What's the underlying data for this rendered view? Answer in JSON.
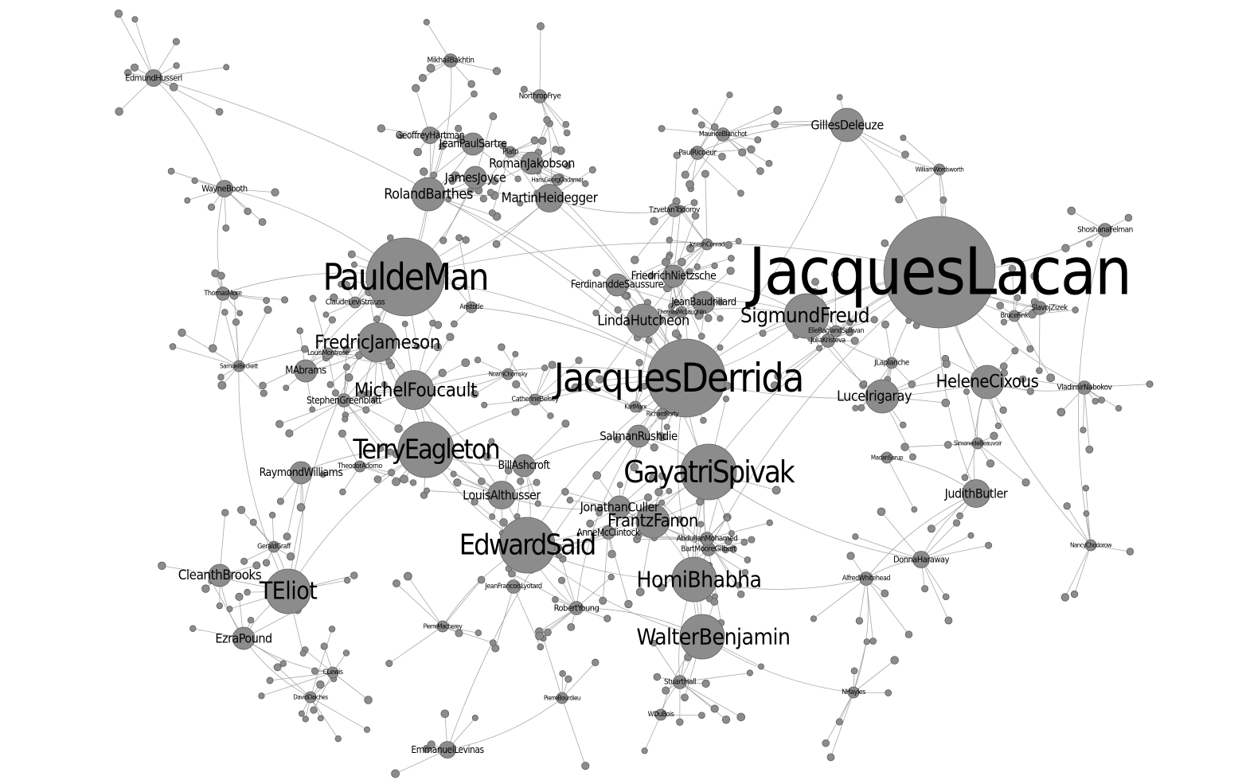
{
  "graph": {
    "style": {
      "background": "#ffffff",
      "node_fill": "#8c8c8c",
      "edge_color": "#9a9a9a",
      "label_color": "#000000"
    },
    "nodes": [
      {
        "id": "lacan",
        "label": "JacquesLacan",
        "weight": 10
      },
      {
        "id": "derrida",
        "label": "JacquesDerrida",
        "weight": 7
      },
      {
        "id": "deman",
        "label": "PauldeMan",
        "weight": 7
      },
      {
        "id": "spivak",
        "label": "GayatriSpivak",
        "weight": 5
      },
      {
        "id": "eagleton",
        "label": "TerryEagleton",
        "weight": 5
      },
      {
        "id": "said",
        "label": "EdwardSaid",
        "weight": 5
      },
      {
        "id": "bhabha",
        "label": "HomiBhabha",
        "weight": 4
      },
      {
        "id": "benjamin",
        "label": "WalterBenjamin",
        "weight": 4
      },
      {
        "id": "eliot",
        "label": "TEliot",
        "weight": 4
      },
      {
        "id": "freud",
        "label": "SigmundFreud",
        "weight": 4
      },
      {
        "id": "foucault",
        "label": "MichelFoucault",
        "weight": 3.5
      },
      {
        "id": "jameson",
        "label": "FredricJameson",
        "weight": 3.5
      },
      {
        "id": "cixous",
        "label": "HeleneCixous",
        "weight": 3
      },
      {
        "id": "irigaray",
        "label": "LuceIrigaray",
        "weight": 3
      },
      {
        "id": "barthes",
        "label": "RolandBarthes",
        "weight": 3
      },
      {
        "id": "hutcheon",
        "label": "LindaHutcheon",
        "weight": 3
      },
      {
        "id": "fanon",
        "label": "FrantzFanon",
        "weight": 3
      },
      {
        "id": "deleuze",
        "label": "GillesDeleuze",
        "weight": 3
      },
      {
        "id": "butler",
        "label": "JudithButler",
        "weight": 2.5
      },
      {
        "id": "althusser",
        "label": "LouisAlthusser",
        "weight": 2.5
      },
      {
        "id": "culler",
        "label": "JonathanCuller",
        "weight": 2
      },
      {
        "id": "rushdie",
        "label": "SalmanRushdie",
        "weight": 2
      },
      {
        "id": "nietzsche",
        "label": "FriedrichNietzsche",
        "weight": 2
      },
      {
        "id": "saussure",
        "label": "FerdinanddeSaussure",
        "weight": 2
      },
      {
        "id": "baudrillard",
        "label": "JeanBaudrillard",
        "weight": 2
      },
      {
        "id": "heidegger",
        "label": "MartinHeidegger",
        "weight": 2.5
      },
      {
        "id": "jakobson",
        "label": "RomanJakobson",
        "weight": 2
      },
      {
        "id": "joyce",
        "label": "JamesJoyce",
        "weight": 2
      },
      {
        "id": "sartre",
        "label": "JeanPaulSartre",
        "weight": 2
      },
      {
        "id": "hartman",
        "label": "GeoffreyHartman",
        "weight": 1.5
      },
      {
        "id": "brooks",
        "label": "CleanthBrooks",
        "weight": 2
      },
      {
        "id": "pound",
        "label": "EzraPound",
        "weight": 2
      },
      {
        "id": "rwilliams",
        "label": "RaymondWilliams",
        "weight": 2
      },
      {
        "id": "ashcroft",
        "label": "BillAshcroft",
        "weight": 2
      },
      {
        "id": "abrams",
        "label": "MAbrams",
        "weight": 2
      },
      {
        "id": "booth",
        "label": "WayneBooth",
        "weight": 1.5
      },
      {
        "id": "husserl",
        "label": "EdmundHusserl",
        "weight": 1.5
      },
      {
        "id": "levinas",
        "label": "EmmanuelLevinas",
        "weight": 1.5
      },
      {
        "id": "haraway",
        "label": "DonnaHaraway",
        "weight": 1.5
      },
      {
        "id": "zizek",
        "label": "SlavojZizek",
        "weight": 1.2
      },
      {
        "id": "stuarthall",
        "label": "StuartHall",
        "weight": 1.2
      },
      {
        "id": "robertyoung",
        "label": "RobertYoung",
        "weight": 1.2
      },
      {
        "id": "greenblatt",
        "label": "StephenGreenblatt",
        "weight": 1.2
      },
      {
        "id": "mcclintock",
        "label": "AnneMcClintock",
        "weight": 1.2
      },
      {
        "id": "todorov",
        "label": "TzvetanTodorov",
        "weight": 1.2
      },
      {
        "id": "ricoeur",
        "label": "PaulRicoeur",
        "weight": 1.2
      },
      {
        "id": "blanchot",
        "label": "MauriceBlanchot",
        "weight": 1.2
      },
      {
        "id": "lyotard",
        "label": "JeanFrancoisLyotard",
        "weight": 1.2
      },
      {
        "id": "frye",
        "label": "NorthropFrye",
        "weight": 1.2
      },
      {
        "id": "bakhtin",
        "label": "MikhailBakhtin",
        "weight": 1.2
      },
      {
        "id": "kristeva",
        "label": "JuliaKristeva",
        "weight": 1.2
      },
      {
        "id": "shoshana",
        "label": "ShoshanaFelman",
        "weight": 1.2
      },
      {
        "id": "nbbokov",
        "label": "VladimirNabokov",
        "weight": 1.2
      },
      {
        "id": "whitehead",
        "label": "AlfredWhitehead",
        "weight": 1.2
      },
      {
        "id": "bartmoore",
        "label": "BartMooreGilbert",
        "weight": 1.2
      },
      {
        "id": "jmohamed",
        "label": "AbdulJanMohamed",
        "weight": 1.2
      },
      {
        "id": "derridaPlato",
        "label": "Plato",
        "weight": 1
      },
      {
        "id": "aristotle",
        "label": "Aristotle",
        "weight": 1
      },
      {
        "id": "marx",
        "label": "KarlMarx",
        "weight": 1
      },
      {
        "id": "levistrauss",
        "label": "ClaudeLeviStrauss",
        "weight": 1
      },
      {
        "id": "gerald",
        "label": "GeraldGraff",
        "weight": 1
      },
      {
        "id": "beauvoir",
        "label": "SimonedeBeauvoir",
        "weight": 1
      },
      {
        "id": "marksarup",
        "label": "MadanSarup",
        "weight": 1
      },
      {
        "id": "laplanche",
        "label": "JLaplanche",
        "weight": 1
      },
      {
        "id": "chodorow",
        "label": "NancyChodorow",
        "weight": 1
      },
      {
        "id": "rcrowd",
        "label": "RichardRorty",
        "weight": 1
      },
      {
        "id": "thomasmore",
        "label": "ThomasMore",
        "weight": 1.2
      },
      {
        "id": "beckett",
        "label": "SamuelBeckett",
        "weight": 1
      },
      {
        "id": "wordsworth",
        "label": "WilliamWordsworth",
        "weight": 1
      },
      {
        "id": "bruceFink",
        "label": "BruceFink",
        "weight": 1
      },
      {
        "id": "eilreag",
        "label": "ElieRaglandSullivan",
        "weight": 1
      },
      {
        "id": "ovmorwaukee",
        "label": "ThomasMcLaughlin",
        "weight": 1
      },
      {
        "id": "chomsky",
        "label": "NoamChomsky",
        "weight": 1
      },
      {
        "id": "belsey",
        "label": "CatherineBelsey",
        "weight": 1
      },
      {
        "id": "adorno",
        "label": "TheodorAdorno",
        "weight": 1
      },
      {
        "id": "gadamer",
        "label": "HansGeorgGadamer",
        "weight": 1
      },
      {
        "id": "pbourdieu",
        "label": "PierreBourdieu",
        "weight": 1
      },
      {
        "id": "pmacherey",
        "label": "PierreMacherey",
        "weight": 1
      },
      {
        "id": "wdubois",
        "label": "WDuBois",
        "weight": 1
      },
      {
        "id": "nhayles",
        "label": "NHayles",
        "weight": 1
      },
      {
        "id": "claimo",
        "label": "CLewis",
        "weight": 1
      },
      {
        "id": "jconrad",
        "label": "JosephConrad",
        "weight": 1
      },
      {
        "id": "tdavidson",
        "label": "DavidDaiches",
        "weight": 1
      },
      {
        "id": "irby",
        "label": "LouisMontrose",
        "weight": 1
      }
    ],
    "edges": [
      [
        "lacan",
        "freud"
      ],
      [
        "lacan",
        "derrida"
      ],
      [
        "lacan",
        "cixous"
      ],
      [
        "lacan",
        "irigaray"
      ],
      [
        "lacan",
        "zizek"
      ],
      [
        "lacan",
        "deleuze"
      ],
      [
        "lacan",
        "shoshana"
      ],
      [
        "lacan",
        "butler"
      ],
      [
        "lacan",
        "bruceFink"
      ],
      [
        "lacan",
        "eilreag"
      ],
      [
        "lacan",
        "kristeva"
      ],
      [
        "lacan",
        "spivak"
      ],
      [
        "lacan",
        "deman"
      ],
      [
        "lacan",
        "bhabha"
      ],
      [
        "lacan",
        "wordsworth"
      ],
      [
        "lacan",
        "nbbokov"
      ],
      [
        "lacan",
        "chodorow"
      ],
      [
        "derrida",
        "deman"
      ],
      [
        "derrida",
        "spivak"
      ],
      [
        "derrida",
        "foucault"
      ],
      [
        "derrida",
        "barthes"
      ],
      [
        "derrida",
        "freud"
      ],
      [
        "derrida",
        "heidegger"
      ],
      [
        "derrida",
        "nietzsche"
      ],
      [
        "derrida",
        "saussure"
      ],
      [
        "derrida",
        "hutcheon"
      ],
      [
        "derrida",
        "eagleton"
      ],
      [
        "derrida",
        "culler"
      ],
      [
        "derrida",
        "said"
      ],
      [
        "derrida",
        "bhabha"
      ],
      [
        "derrida",
        "levinas"
      ],
      [
        "derrida",
        "marx"
      ],
      [
        "derrida",
        "baudrillard"
      ],
      [
        "derrida",
        "husserl"
      ],
      [
        "derrida",
        "rushdie"
      ],
      [
        "derrida",
        "cixous"
      ],
      [
        "derrida",
        "deleuze"
      ],
      [
        "derrida",
        "derridaPlato"
      ],
      [
        "derrida",
        "aristotle"
      ],
      [
        "derrida",
        "belsey"
      ],
      [
        "deman",
        "jameson"
      ],
      [
        "deman",
        "barthes"
      ],
      [
        "deman",
        "booth"
      ],
      [
        "deman",
        "heidegger"
      ],
      [
        "deman",
        "thomasmore"
      ],
      [
        "deman",
        "levistrauss"
      ],
      [
        "deman",
        "eliot"
      ],
      [
        "deman",
        "joyce"
      ],
      [
        "deman",
        "hartman"
      ],
      [
        "deman",
        "abrams"
      ],
      [
        "eagleton",
        "said"
      ],
      [
        "eagleton",
        "jameson"
      ],
      [
        "eagleton",
        "foucault"
      ],
      [
        "eagleton",
        "rwilliams"
      ],
      [
        "eagleton",
        "althusser"
      ],
      [
        "eagleton",
        "eliot"
      ],
      [
        "eagleton",
        "adorno"
      ],
      [
        "eagleton",
        "greenblatt"
      ],
      [
        "eagleton",
        "ashcroft"
      ],
      [
        "said",
        "spivak"
      ],
      [
        "said",
        "bhabha"
      ],
      [
        "said",
        "fanon"
      ],
      [
        "said",
        "foucault"
      ],
      [
        "said",
        "benjamin"
      ],
      [
        "said",
        "robertyoung"
      ],
      [
        "said",
        "lyotard"
      ],
      [
        "said",
        "pmacherey"
      ],
      [
        "said",
        "ashcroft"
      ],
      [
        "said",
        "mcclintock"
      ],
      [
        "spivak",
        "bhabha"
      ],
      [
        "spivak",
        "fanon"
      ],
      [
        "spivak",
        "benjamin"
      ],
      [
        "spivak",
        "rushdie"
      ],
      [
        "spivak",
        "jmohamed"
      ],
      [
        "spivak",
        "bartmoore"
      ],
      [
        "spivak",
        "haraway"
      ],
      [
        "bhabha",
        "benjamin"
      ],
      [
        "bhabha",
        "fanon"
      ],
      [
        "bhabha",
        "stuarthall"
      ],
      [
        "bhabha",
        "whitehead"
      ],
      [
        "benjamin",
        "wdubois"
      ],
      [
        "benjamin",
        "nhayles"
      ],
      [
        "benjamin",
        "robertyoung"
      ],
      [
        "eliot",
        "brooks"
      ],
      [
        "eliot",
        "pound"
      ],
      [
        "eliot",
        "gerald"
      ],
      [
        "eliot",
        "rwilliams"
      ],
      [
        "brooks",
        "pound"
      ],
      [
        "pound",
        "claimo"
      ],
      [
        "pound",
        "tdavidson"
      ],
      [
        "freud",
        "irigaray"
      ],
      [
        "freud",
        "laplanche"
      ],
      [
        "freud",
        "baudrillard"
      ],
      [
        "freud",
        "nietzsche"
      ],
      [
        "freud",
        "eilreag"
      ],
      [
        "freud",
        "hutcheon"
      ],
      [
        "cixous",
        "irigaray"
      ],
      [
        "cixous",
        "beauvoir"
      ],
      [
        "cixous",
        "butler"
      ],
      [
        "cixous",
        "nbbokov"
      ],
      [
        "butler",
        "whitehead"
      ],
      [
        "butler",
        "marksarup"
      ],
      [
        "butler",
        "haraway"
      ],
      [
        "barthes",
        "sartre"
      ],
      [
        "barthes",
        "jakobson"
      ],
      [
        "barthes",
        "joyce"
      ],
      [
        "barthes",
        "bakhtin"
      ],
      [
        "heidegger",
        "gadamer"
      ],
      [
        "heidegger",
        "jakobson"
      ],
      [
        "heidegger",
        "todorov"
      ],
      [
        "heidegger",
        "frye"
      ],
      [
        "foucault",
        "jameson"
      ],
      [
        "foucault",
        "chomsky"
      ],
      [
        "foucault",
        "greenblatt"
      ],
      [
        "foucault",
        "althusser"
      ],
      [
        "deleuze",
        "blanchot"
      ],
      [
        "deleuze",
        "ricoeur"
      ],
      [
        "deleuze",
        "wordsworth"
      ],
      [
        "booth",
        "husserl"
      ],
      [
        "booth",
        "thomasmore"
      ],
      [
        "althusser",
        "culler"
      ],
      [
        "culler",
        "fanon"
      ],
      [
        "fanon",
        "mcclintock"
      ],
      [
        "fanon",
        "jmohamed"
      ],
      [
        "rushdie",
        "ashcroft"
      ],
      [
        "rushdie",
        "robertyoung"
      ],
      [
        "levinas",
        "pbourdieu"
      ],
      [
        "stuarthall",
        "wdubois"
      ],
      [
        "haraway",
        "whitehead"
      ],
      [
        "nhayles",
        "whitehead"
      ],
      [
        "irigaray",
        "laplanche"
      ],
      [
        "zizek",
        "bruceFink"
      ],
      [
        "shoshana",
        "chodorow"
      ],
      [
        "nietzsche",
        "saussure"
      ],
      [
        "saussure",
        "hutcheon"
      ],
      [
        "jconrad",
        "nietzsche"
      ],
      [
        "ovmorwaukee",
        "baudrillard"
      ],
      [
        "irby",
        "jameson"
      ],
      [
        "abrams",
        "jameson"
      ],
      [
        "rcrowd",
        "marx"
      ],
      [
        "beckett",
        "eliot"
      ]
    ]
  }
}
